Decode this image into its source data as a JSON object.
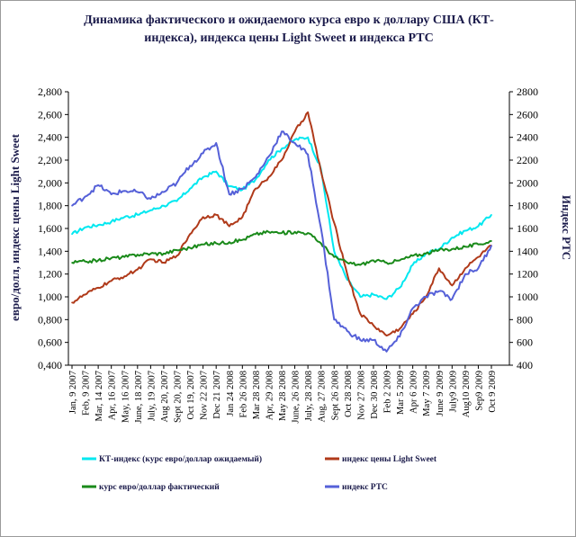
{
  "chart_data": {
    "type": "line",
    "title": "Динамика фактического и ожидаемого курса евро к доллару США  (КТ-индекса), индекса цены Light Sweet и индекса РТС",
    "title_lines": [
      "Динамика фактического и ожидаемого курса евро к доллару США  (КТ-",
      "индекса), индекса цены Light Sweet и индекса РТС"
    ],
    "ylabel": "евро/долл, индекс цены Light Sweet",
    "y2label": "Индекс РТС",
    "ylim": [
      0.4,
      2.8
    ],
    "y2lim": [
      400,
      2800
    ],
    "yticks": [
      "0,400",
      "0,600",
      "0,800",
      "1,000",
      "1,200",
      "1,400",
      "1,600",
      "1,800",
      "2,000",
      "2,200",
      "2,400",
      "2,600",
      "2,800"
    ],
    "y2ticks": [
      "400",
      "600",
      "800",
      "1000",
      "1200",
      "1400",
      "1600",
      "1800",
      "2000",
      "2200",
      "2400",
      "2600",
      "2800"
    ],
    "categories": [
      "Jan, 9 2007",
      "Feb, 9 2007",
      "Mar, 14 2007",
      "Apr, 16 2007",
      "May, 16 2007",
      "June, 18 2007",
      "July, 19 2007",
      "Aug 20, 2007",
      "Sept 20, 2007",
      "Oct 19, 2007",
      "Nov 22 2007",
      "Dec 21 2007",
      "Jan 24 2008",
      "Feb 26 2008",
      "Mar 28 2008",
      "Apr, 29 2008",
      "May 28 2008",
      "June, 26 2008",
      "July, 28 2008",
      "Aug, 27 2008",
      "Sept 26 2008",
      "Oct 28 2008",
      "Nov 27 2008",
      "Dec 30 2008",
      "Feb 2 2009",
      "Mar 5 2009",
      "Apr 6 2009",
      "May 7 2009",
      "June 9 2009",
      "July9 2009",
      "Aug10 2009",
      "Sep9 2009",
      "Oct 9 2009"
    ],
    "legend_placement": "bottom",
    "grid": false,
    "series": [
      {
        "name": "КТ-индекс (курс евро/доллар ожидаемый)",
        "color": "#00e8f0",
        "axis": "left",
        "values": [
          1.55,
          1.61,
          1.63,
          1.66,
          1.7,
          1.72,
          1.76,
          1.8,
          1.84,
          1.95,
          2.05,
          2.1,
          1.97,
          1.94,
          2.03,
          2.2,
          2.3,
          2.38,
          2.4,
          2.12,
          1.4,
          1.15,
          1.0,
          1.02,
          0.98,
          1.08,
          1.28,
          1.38,
          1.42,
          1.52,
          1.58,
          1.62,
          1.72
        ]
      },
      {
        "name": "индекс цены Light Sweet",
        "color": "#b03a1a",
        "axis": "left",
        "values": [
          0.95,
          1.02,
          1.08,
          1.14,
          1.18,
          1.24,
          1.33,
          1.3,
          1.36,
          1.55,
          1.7,
          1.72,
          1.62,
          1.7,
          1.95,
          2.05,
          2.2,
          2.45,
          2.62,
          2.1,
          1.65,
          1.2,
          0.85,
          0.75,
          0.66,
          0.72,
          0.85,
          1.0,
          1.25,
          1.1,
          1.25,
          1.35,
          1.45
        ]
      },
      {
        "name": "курс евро/доллар фактический",
        "color": "#1a8a1a",
        "axis": "left",
        "values": [
          1.3,
          1.31,
          1.32,
          1.34,
          1.35,
          1.37,
          1.38,
          1.38,
          1.41,
          1.43,
          1.46,
          1.47,
          1.48,
          1.5,
          1.55,
          1.57,
          1.56,
          1.57,
          1.56,
          1.47,
          1.35,
          1.3,
          1.28,
          1.32,
          1.3,
          1.32,
          1.36,
          1.38,
          1.41,
          1.42,
          1.44,
          1.46,
          1.49
        ]
      },
      {
        "name": "индекс РТС",
        "color": "#5560d8",
        "axis": "right",
        "values": [
          1800,
          1880,
          1980,
          1900,
          1930,
          1920,
          1860,
          1920,
          2000,
          2150,
          2260,
          2350,
          1900,
          1950,
          2050,
          2230,
          2450,
          2350,
          2250,
          1600,
          800,
          700,
          620,
          620,
          520,
          650,
          900,
          1000,
          1050,
          980,
          1200,
          1250,
          1450
        ]
      }
    ]
  }
}
